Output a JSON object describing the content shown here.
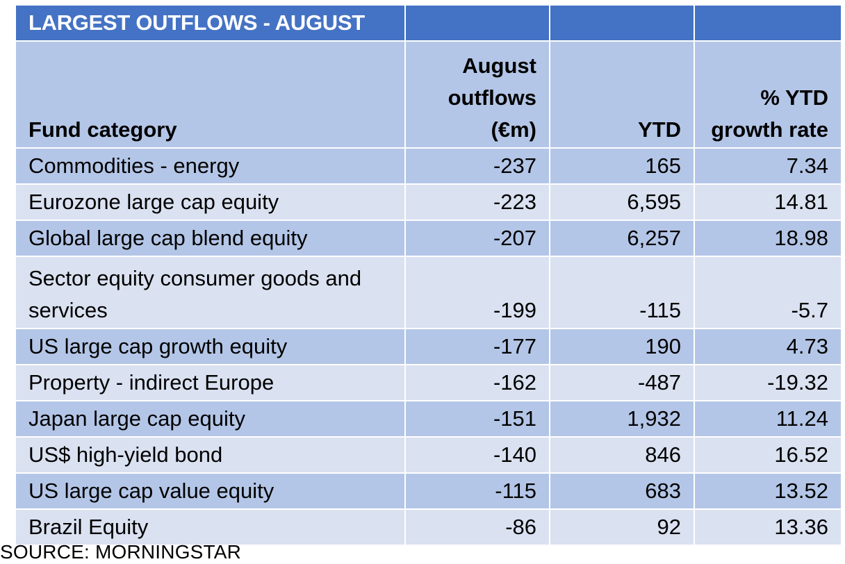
{
  "title": "LARGEST OUTFLOWS - AUGUST",
  "headers": {
    "category": "Fund category",
    "august": "August outflows (€m)",
    "ytd": "YTD",
    "growth": "% YTD growth rate"
  },
  "source": "SOURCE: MORNINGSTAR",
  "chart_data": {
    "type": "table",
    "title": "LARGEST OUTFLOWS - AUGUST",
    "columns": [
      "Fund category",
      "August outflows (€m)",
      "YTD",
      "% YTD growth rate"
    ],
    "rows": [
      {
        "category": "Commodities - energy",
        "august": "-237",
        "ytd": "165",
        "growth": "7.34"
      },
      {
        "category": "Eurozone large cap equity",
        "august": "-223",
        "ytd": "6,595",
        "growth": "14.81"
      },
      {
        "category": "Global large cap blend equity",
        "august": "-207",
        "ytd": "6,257",
        "growth": "18.98"
      },
      {
        "category": "Sector equity consumer goods and services",
        "august": "-199",
        "ytd": "-115",
        "growth": "-5.7"
      },
      {
        "category": "US large cap growth equity",
        "august": "-177",
        "ytd": "190",
        "growth": "4.73"
      },
      {
        "category": "Property - indirect Europe",
        "august": "-162",
        "ytd": "-487",
        "growth": "-19.32"
      },
      {
        "category": "Japan large cap equity",
        "august": "-151",
        "ytd": "1,932",
        "growth": "11.24"
      },
      {
        "category": "US$ high-yield bond",
        "august": "-140",
        "ytd": "846",
        "growth": "16.52"
      },
      {
        "category": "US large cap value equity",
        "august": "-115",
        "ytd": "683",
        "growth": "13.52"
      },
      {
        "category": "Brazil Equity",
        "august": "-86",
        "ytd": "92",
        "growth": "13.36"
      }
    ],
    "source": "SOURCE: MORNINGSTAR"
  }
}
